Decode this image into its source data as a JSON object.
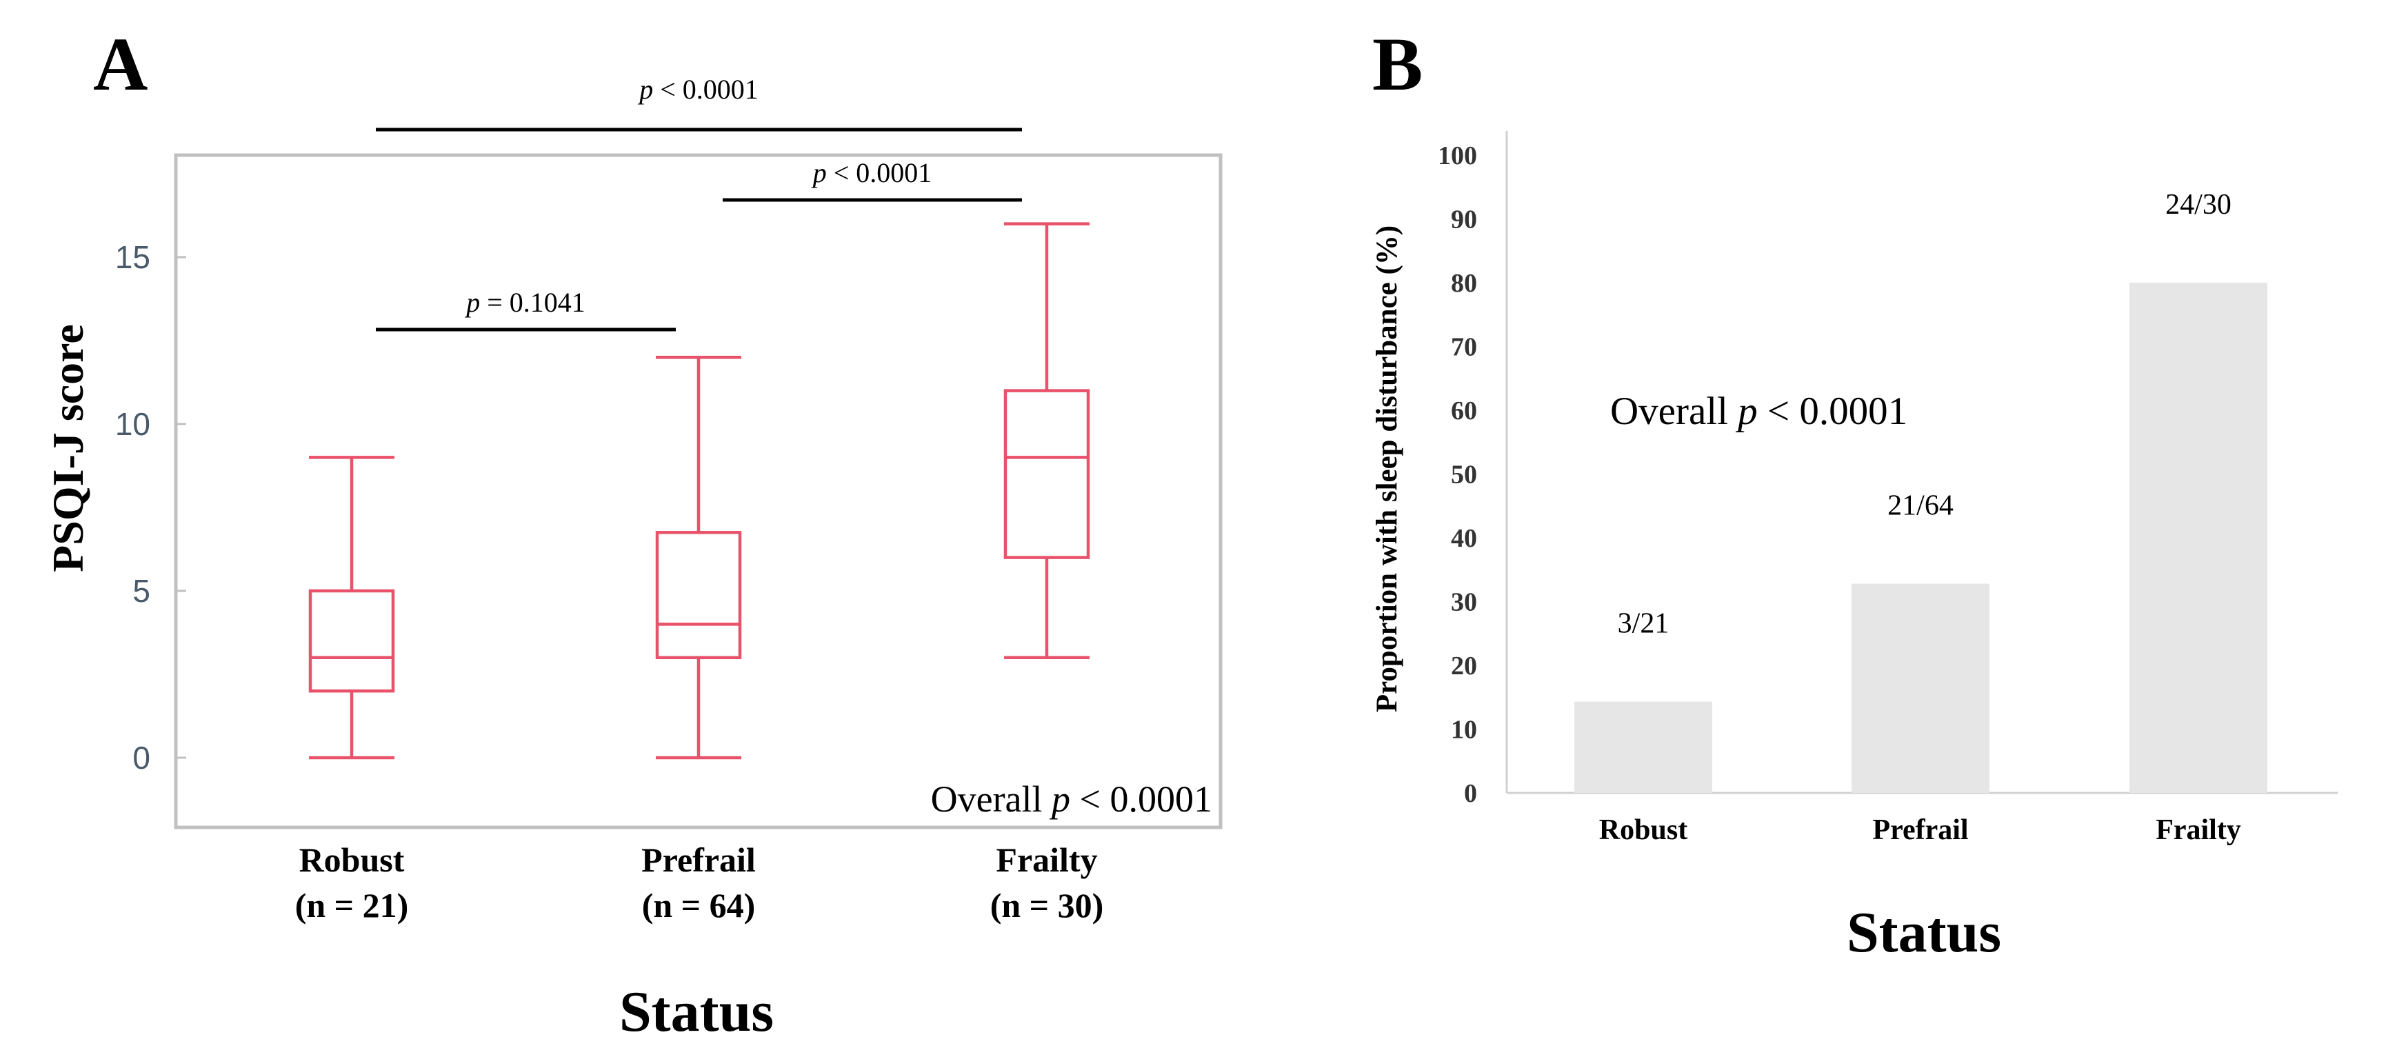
{
  "chart_data": [
    {
      "panel_label": "A",
      "type": "box",
      "ylabel": "PSQI-J score",
      "xlabel": "Status",
      "ylim": [
        -2,
        18
      ],
      "yticks": [
        "0",
        "5",
        "10",
        "15"
      ],
      "ytick_values": [
        0,
        5,
        10,
        15
      ],
      "categories": [
        {
          "name": "Robust",
          "n": "(n = 21)",
          "min": 0,
          "q1": 2,
          "median": 3,
          "q3": 5,
          "max": 9
        },
        {
          "name": "Prefrail",
          "n": "(n = 64)",
          "min": 0,
          "q1": 3,
          "median": 4,
          "q3": 6.75,
          "max": 12
        },
        {
          "name": "Frailty",
          "n": "(n = 30)",
          "min": 3,
          "q1": 6,
          "median": 9,
          "q3": 11,
          "max": 16
        }
      ],
      "comparisons": [
        {
          "from": "Robust",
          "to": "Frailty",
          "p_symbol": "p",
          "p_rest": " < 0.0001"
        },
        {
          "from": "Prefrail",
          "to": "Frailty",
          "p_symbol": "p",
          "p_rest": " < 0.0001"
        },
        {
          "from": "Robust",
          "to": "Prefrail",
          "p_symbol": "p",
          "p_rest": " = 0.1041"
        }
      ],
      "overall": {
        "prefix": "Overall ",
        "p_symbol": "p",
        "p_rest": " < 0.0001"
      },
      "colors": {
        "box": "#e8526a",
        "frame": "#c0c0c0",
        "tick_text": "#4a5a6a"
      }
    },
    {
      "panel_label": "B",
      "type": "bar",
      "ylabel": "Proportion with sleep disturbance (%)",
      "xlabel": "Status",
      "ylim": [
        0,
        100
      ],
      "yticks": [
        "0",
        "10",
        "20",
        "30",
        "40",
        "50",
        "60",
        "70",
        "80",
        "90",
        "100"
      ],
      "ytick_values": [
        0,
        10,
        20,
        30,
        40,
        50,
        60,
        70,
        80,
        90,
        100
      ],
      "categories": [
        "Robust",
        "Prefrail",
        "Frailty"
      ],
      "values": [
        14.3,
        32.8,
        80
      ],
      "data_labels": [
        "3/21",
        "21/64",
        "24/30"
      ],
      "overall": {
        "prefix": "Overall ",
        "p_symbol": "p",
        "p_rest": " < 0.0001"
      },
      "colors": {
        "bar": "#e6e6e6",
        "axis": "#d0d0d0"
      }
    }
  ]
}
